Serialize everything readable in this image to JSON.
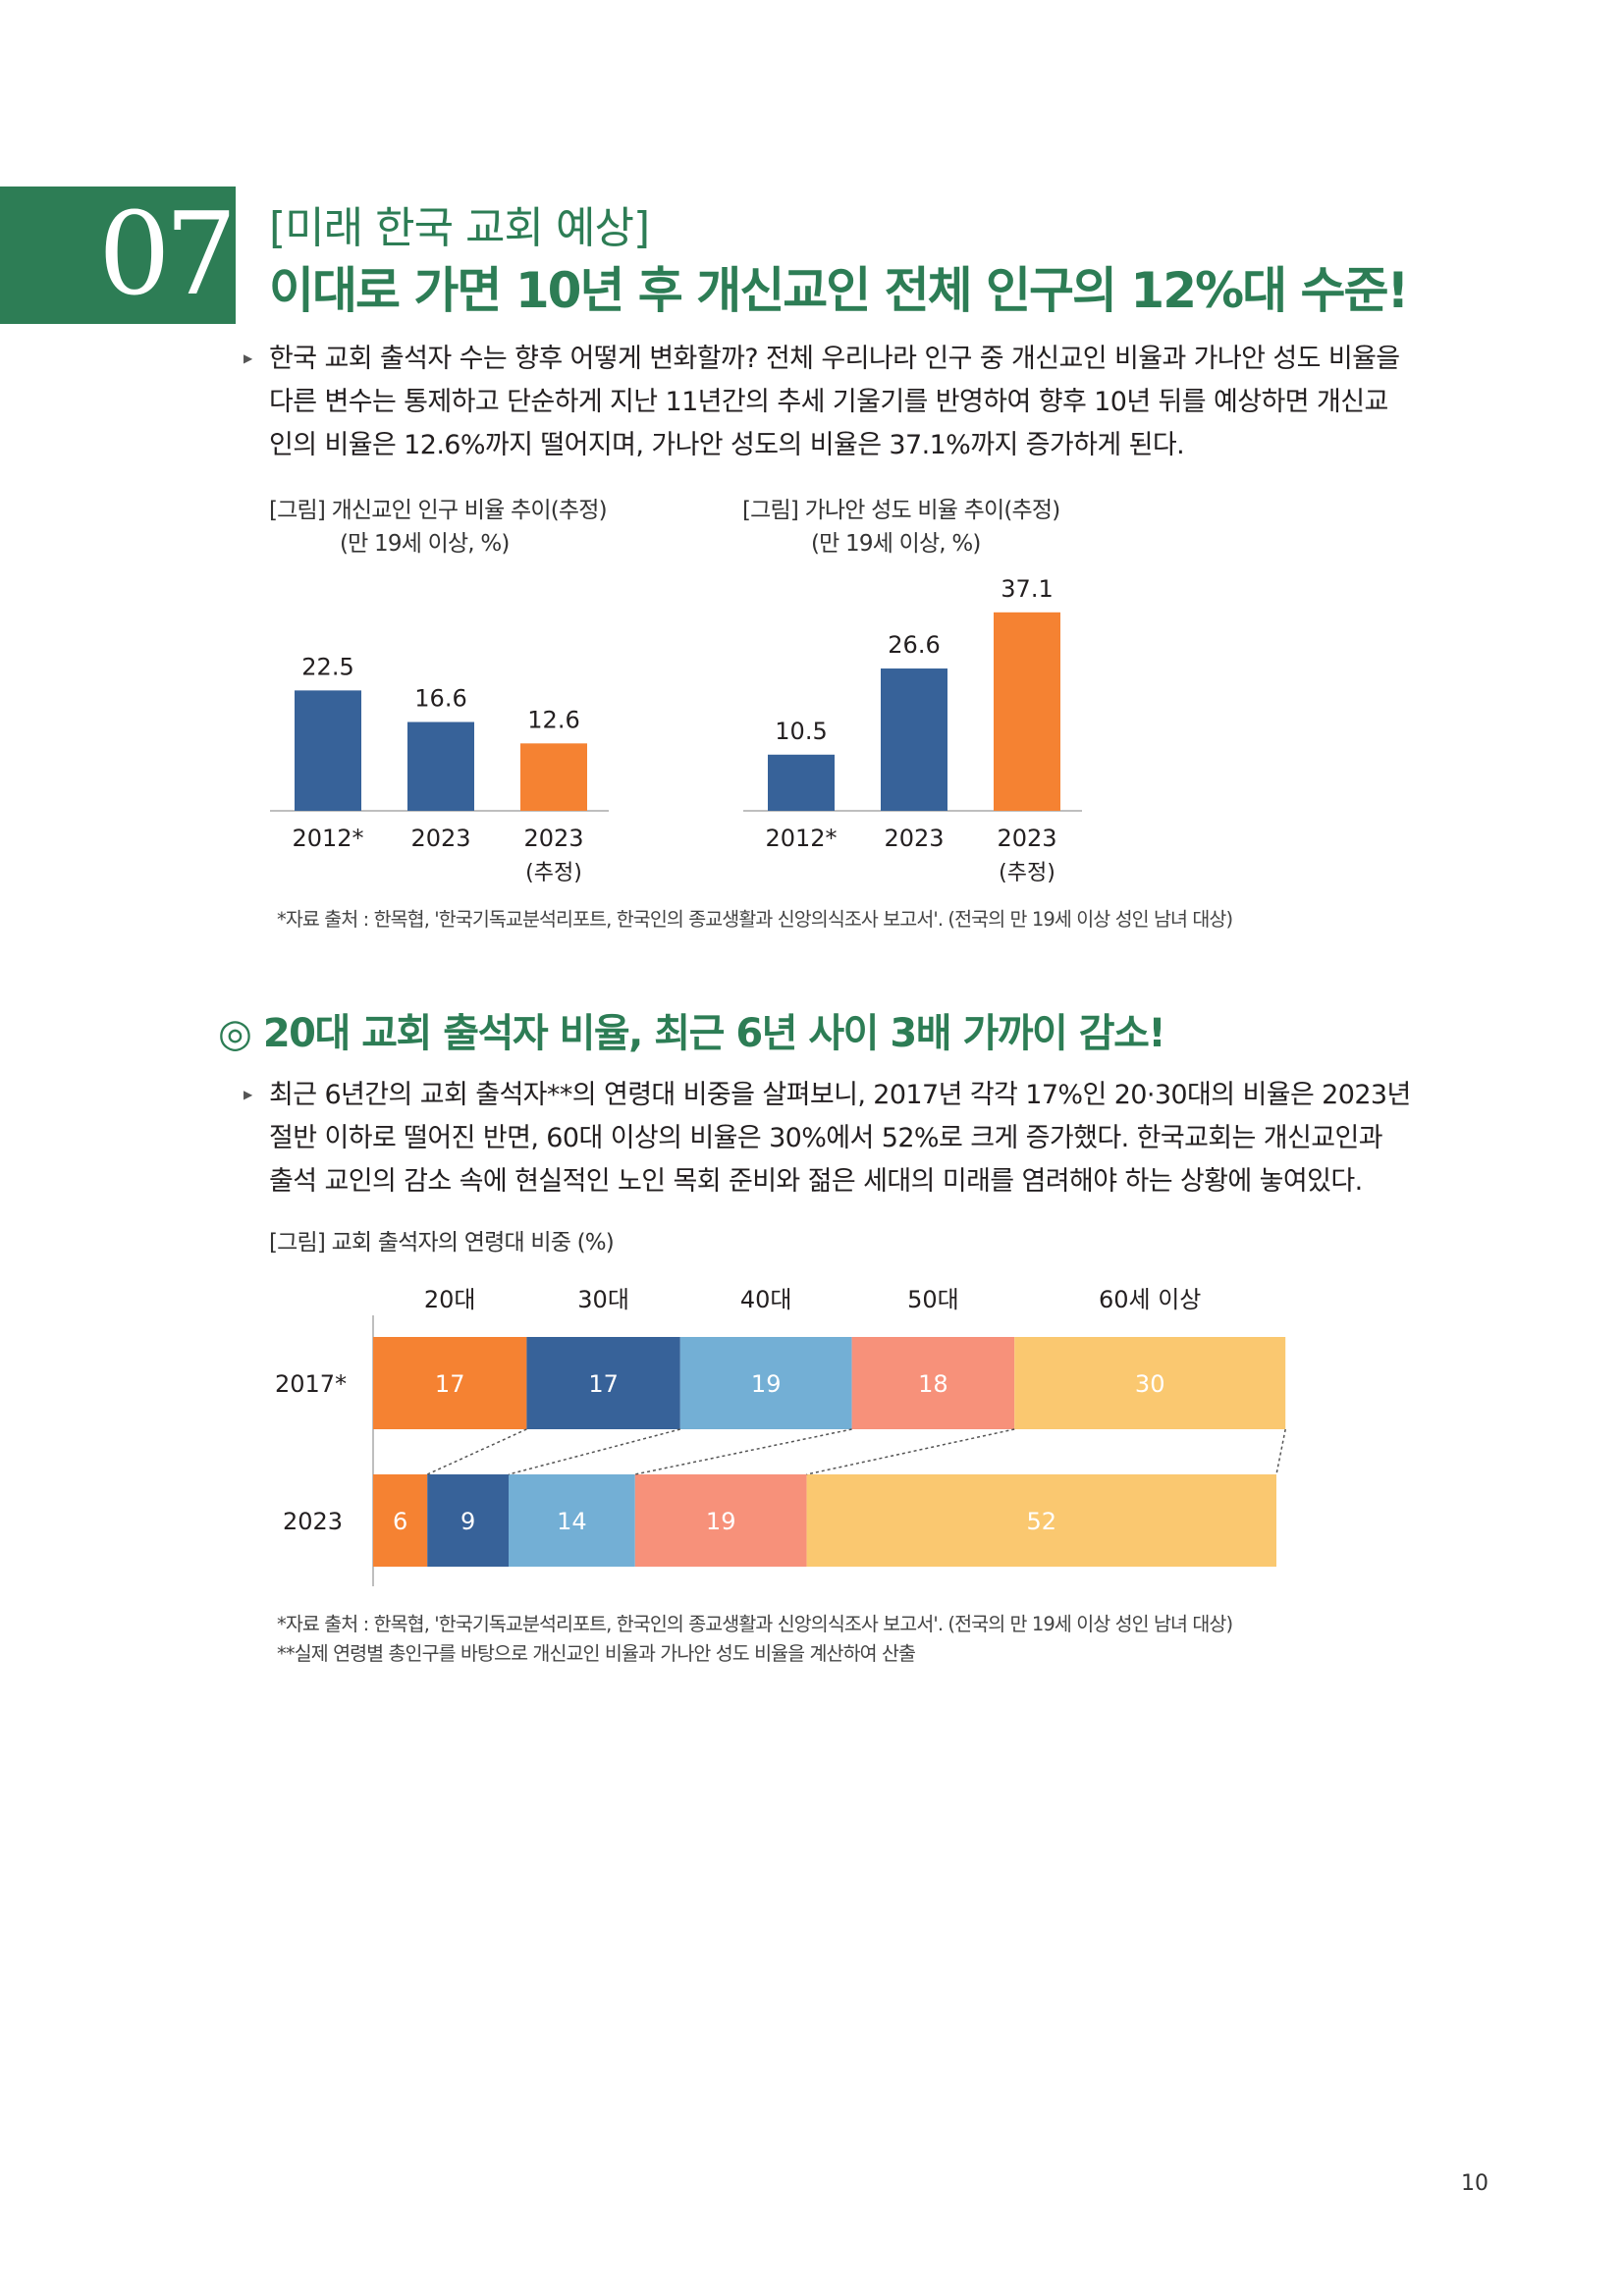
{
  "header": {
    "number": "07",
    "kicker": "[미래 한국 교회 예상]",
    "headline": "이대로 가면 10년 후 개신교인 전체 인구의 12%대 수준!"
  },
  "intro": {
    "lines": [
      "한국 교회 출석자 수는 향후 어떻게 변화할까? 전체 우리나라 인구 중 개신교인 비율과 가나안 성도 비율을",
      "다른 변수는 통제하고 단순하게 지난 11년간의 추세 기울기를 반영하여 향후 10년 뒤를 예상하면 개신교",
      "인의 비율은 12.6%까지 떨어지며, 가나안 성도의 비율은 37.1%까지 증가하게 된다."
    ]
  },
  "source_note_1": "*자료 출처 : 한목협, '한국기독교분석리포트, 한국인의 종교생활과 신앙의식조사 보고서'. (전국의 만 19세 이상 성인 남녀 대상)",
  "section2": {
    "title": "◎ 20대 교회 출석자 비율, 최근 6년 사이 3배 가까이 감소!",
    "lines": [
      "최근 6년간의 교회 출석자**의 연령대 비중을 살펴보니, 2017년 각각 17%인 20·30대의 비율은 2023년",
      "절반 이하로 떨어진 반면, 60대 이상의 비율은 30%에서 52%로 크게 증가했다. 한국교회는 개신교인과",
      "출석 교인의 감소 속에 현실적인 노인 목회 준비와 젊은 세대의 미래를 염려해야 하는 상황에 놓여있다."
    ]
  },
  "source_note_2": "*자료 출처 : 한목협, '한국기독교분석리포트, 한국인의 종교생활과 신앙의식조사 보고서'. (전국의 만 19세 이상 성인 남녀 대상)",
  "source_note_3": "**실제 연령별 총인구를 바탕으로 개신교인 비율과 가나안 성도 비율을 계산하여 산출",
  "page_number": "10",
  "colors": {
    "green": "#2d7d55",
    "blue_dark": "#376299",
    "orange": "#f58232",
    "light_blue": "#73afd5",
    "salmon": "#f7917a",
    "yellow": "#fac870"
  },
  "chart_data": [
    {
      "type": "bar",
      "caption": "[그림] 개신교인 인구 비율 추이(추정)",
      "subcaption": "(만 19세 이상, %)",
      "categories": [
        "2012*",
        "2023",
        "2023"
      ],
      "category_sublabels": [
        "",
        "",
        "(추정)"
      ],
      "values": [
        22.5,
        16.6,
        12.6
      ],
      "value_labels": [
        "22.5",
        "16.6",
        "12.6"
      ],
      "bar_colors": [
        "#376299",
        "#376299",
        "#f58232"
      ],
      "ylim": [
        0,
        40
      ]
    },
    {
      "type": "bar",
      "caption": "[그림] 가나안 성도 비율 추이(추정)",
      "subcaption": "(만 19세 이상, %)",
      "categories": [
        "2012*",
        "2023",
        "2023"
      ],
      "category_sublabels": [
        "",
        "",
        "(추정)"
      ],
      "values": [
        10.5,
        26.6,
        37.1
      ],
      "value_labels": [
        "10.5",
        "26.6",
        "37.1"
      ],
      "bar_colors": [
        "#376299",
        "#376299",
        "#f58232"
      ],
      "ylim": [
        0,
        40
      ]
    },
    {
      "type": "bar",
      "orientation": "horizontal-stacked",
      "caption": "[그림] 교회 출석자의 연령대 비중 (%)",
      "legend": [
        "20대",
        "30대",
        "40대",
        "50대",
        "60세 이상"
      ],
      "series_colors": [
        "#f58232",
        "#376299",
        "#73afd5",
        "#f7917a",
        "#fac870"
      ],
      "rows": [
        {
          "label": "2017*",
          "values": [
            17,
            17,
            19,
            18,
            30
          ],
          "value_labels": [
            "17",
            "17",
            "19",
            "18",
            "30"
          ]
        },
        {
          "label": "2023",
          "values": [
            6,
            9,
            14,
            19,
            52
          ],
          "value_labels": [
            "6",
            "9",
            "14",
            "19",
            "52"
          ]
        }
      ]
    }
  ]
}
